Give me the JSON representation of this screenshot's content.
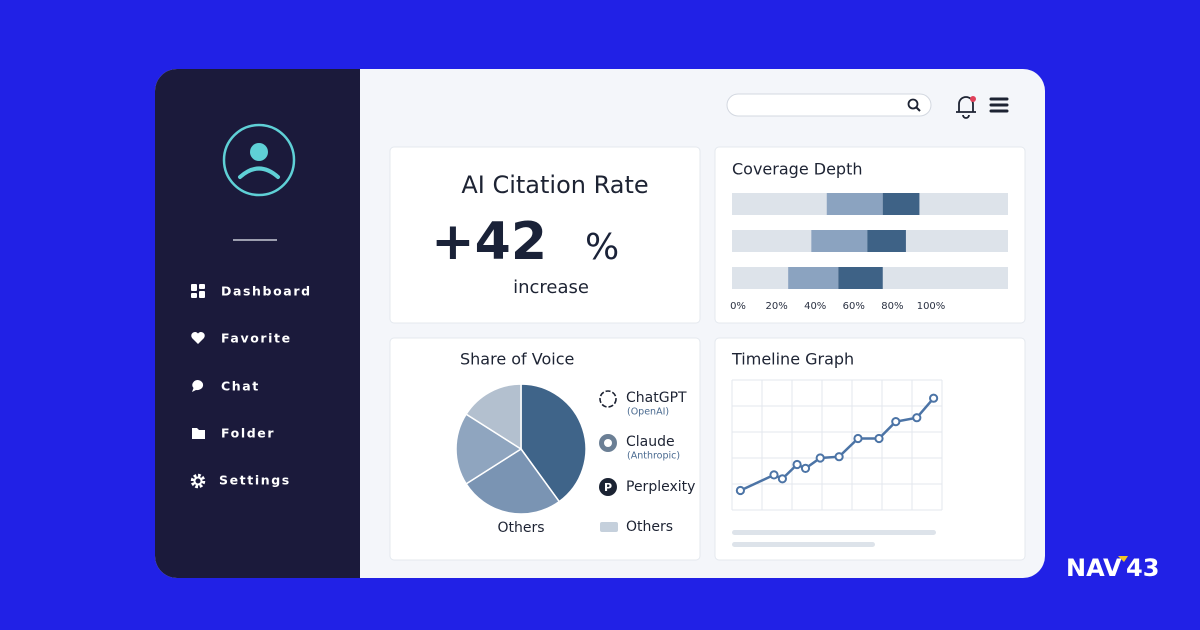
{
  "sidebar": {
    "menu": [
      "Dashboard",
      "Favorite",
      "Chat",
      "Folder",
      "Settings"
    ]
  },
  "citation_card": {
    "title": "AI Citation Rate",
    "metric": "+42",
    "metric_unit": "%",
    "metric_note": "increase"
  },
  "chart_data": [
    {
      "type": "range_bar",
      "title": "Coverage Depth",
      "xlim": [
        0,
        100
      ],
      "xticks": [
        {
          "value": 0,
          "label": "0%"
        },
        {
          "value": 20,
          "label": "20%"
        },
        {
          "value": 40,
          "label": "40%"
        },
        {
          "value": 60,
          "label": "60%"
        },
        {
          "value": 80,
          "label": "80%"
        },
        {
          "value": 100,
          "label": "100%"
        }
      ],
      "bars": [
        {
          "light": [
            46,
            75
          ],
          "dark": [
            75,
            94
          ]
        },
        {
          "light": [
            38,
            67
          ],
          "dark": [
            67,
            87
          ]
        },
        {
          "light": [
            26,
            52
          ],
          "dark": [
            52,
            75
          ]
        }
      ],
      "colors": {
        "track": "#dde3ea",
        "light": "#8ba3c0",
        "dark": "#3e6286"
      }
    },
    {
      "type": "pie",
      "title": "Share of Voice",
      "categories": [
        "ChatGPT",
        "Claude",
        "Perplexity",
        "Others"
      ],
      "notes": [
        "(OpenAI)",
        "(Anthropic)",
        null,
        null
      ],
      "values": [
        40,
        18,
        16,
        26
      ],
      "colors": [
        "#3f6489",
        "#8fa5bf",
        "#b3c0cf",
        "#7a94b3"
      ]
    },
    {
      "type": "line",
      "title": "Timeline Graph",
      "x": [
        4,
        20,
        24,
        31,
        35,
        42,
        51,
        60,
        70,
        78,
        88,
        96
      ],
      "values": [
        15,
        27,
        24,
        35,
        32,
        40,
        41,
        55,
        55,
        68,
        71,
        86
      ],
      "xlim": [
        0,
        100
      ],
      "ylim": [
        0,
        100
      ],
      "grid": true,
      "color": "#4c74a6"
    }
  ],
  "brand": {
    "left": "NAV",
    "right": "43"
  }
}
